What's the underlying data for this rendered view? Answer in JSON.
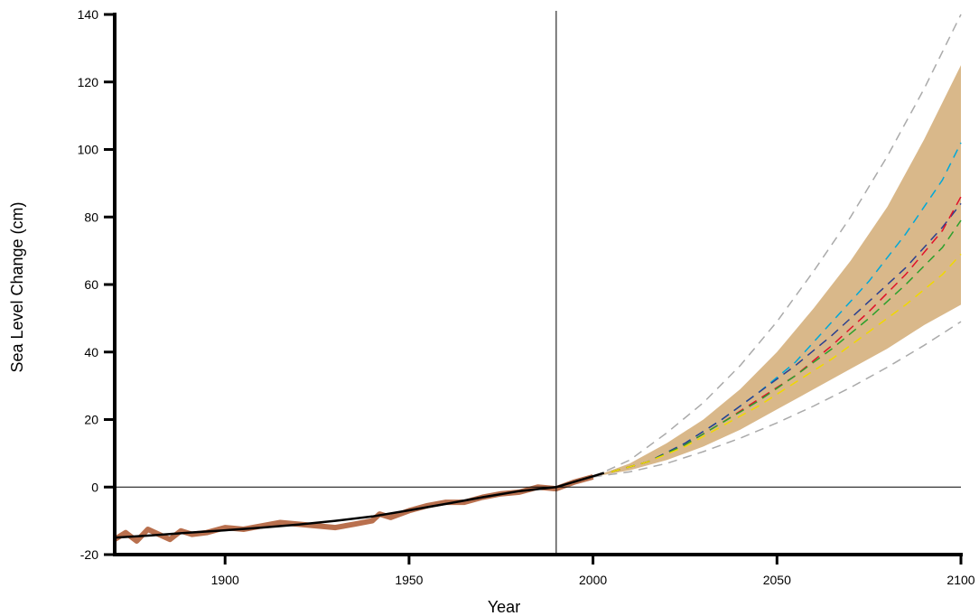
{
  "chart_data": {
    "type": "line",
    "title": "",
    "xlabel": "Year",
    "ylabel": "Sea Level Change (cm)",
    "xlim": [
      1870,
      2100
    ],
    "ylim": [
      -20,
      140
    ],
    "x_ticks": [
      1900,
      1950,
      2000,
      2050,
      2100
    ],
    "y_ticks": [
      -20,
      0,
      20,
      40,
      60,
      80,
      100,
      120,
      140
    ],
    "grid": false,
    "legend": "none",
    "reference_lines": {
      "vertical_x": 1990,
      "horizontal_y": 0
    },
    "observed_band": {
      "color": "#b9704e",
      "x": [
        1870,
        1873,
        1876,
        1879,
        1882,
        1885,
        1888,
        1891,
        1895,
        1900,
        1905,
        1910,
        1915,
        1920,
        1925,
        1930,
        1935,
        1940,
        1942,
        1945,
        1950,
        1955,
        1960,
        1965,
        1970,
        1975,
        1980,
        1985,
        1990,
        1995,
        2000
      ],
      "values": [
        -15.5,
        -13.5,
        -16,
        -12.5,
        -14,
        -15.5,
        -13,
        -14,
        -13.5,
        -12,
        -12.5,
        -11.5,
        -10.5,
        -11,
        -11.5,
        -12,
        -11,
        -10,
        -8,
        -9,
        -7,
        -5.5,
        -4.5,
        -4.5,
        -3,
        -2,
        -1.5,
        0,
        -0.5,
        1.5,
        3
      ]
    },
    "smoothed_series": {
      "color": "#000000",
      "x": [
        1870,
        1880,
        1890,
        1900,
        1910,
        1920,
        1930,
        1940,
        1950,
        1960,
        1970,
        1980,
        1990,
        2000,
        2003
      ],
      "values": [
        -15,
        -14.3,
        -13.5,
        -12.8,
        -12,
        -11.1,
        -10,
        -8.7,
        -6.9,
        -5,
        -3,
        -1.2,
        0,
        3.2,
        4.2
      ]
    },
    "projection_band": {
      "color": "#d9b88a",
      "x": [
        2000,
        2010,
        2020,
        2030,
        2040,
        2050,
        2060,
        2070,
        2080,
        2090,
        2100
      ],
      "lower": [
        3,
        5,
        8,
        12,
        17,
        23,
        29,
        35,
        41,
        48,
        54
      ],
      "upper": [
        3,
        7,
        13,
        20,
        29,
        40,
        53,
        67,
        83,
        103,
        125
      ]
    },
    "bound_lines": {
      "color": "#aaaaaa",
      "x": [
        2000,
        2010,
        2020,
        2030,
        2040,
        2050,
        2060,
        2070,
        2080,
        2090,
        2100
      ],
      "lower": [
        3,
        4.5,
        7,
        10.5,
        14.5,
        19,
        24,
        29.5,
        35.5,
        42,
        49
      ],
      "upper": [
        3,
        8,
        16,
        25,
        36,
        49,
        64,
        80,
        98,
        118,
        140
      ]
    },
    "series": [
      {
        "color": "#00a8d8",
        "x": [
          2005,
          2015,
          2025,
          2035,
          2045,
          2055,
          2065,
          2075,
          2085,
          2095,
          2100
        ],
        "values": [
          4.5,
          7.5,
          13,
          20,
          28,
          37,
          49,
          61,
          75,
          91,
          102
        ]
      },
      {
        "color": "#2a3f8f",
        "x": [
          2005,
          2015,
          2025,
          2035,
          2045,
          2055,
          2065,
          2075,
          2085,
          2095,
          2100
        ],
        "values": [
          4.5,
          7.5,
          13,
          20,
          28,
          36,
          45,
          55,
          65,
          77,
          84
        ]
      },
      {
        "color": "#e0102a",
        "x": [
          2005,
          2015,
          2025,
          2035,
          2045,
          2055,
          2065,
          2075,
          2085,
          2095,
          2100
        ],
        "values": [
          4.5,
          7.5,
          12.5,
          19,
          26,
          33,
          42,
          52,
          63,
          76,
          86
        ]
      },
      {
        "color": "#2ca02c",
        "x": [
          2005,
          2015,
          2025,
          2035,
          2045,
          2055,
          2065,
          2075,
          2085,
          2095,
          2100
        ],
        "values": [
          4.5,
          7.5,
          12.5,
          19,
          25.5,
          33,
          41,
          50,
          60,
          71,
          79
        ]
      },
      {
        "color": "#f0d800",
        "x": [
          2005,
          2015,
          2025,
          2035,
          2045,
          2055,
          2065,
          2075,
          2085,
          2095,
          2100
        ],
        "values": [
          4.5,
          7.5,
          12,
          18,
          24,
          31,
          38,
          46,
          54,
          63,
          69
        ]
      }
    ]
  }
}
